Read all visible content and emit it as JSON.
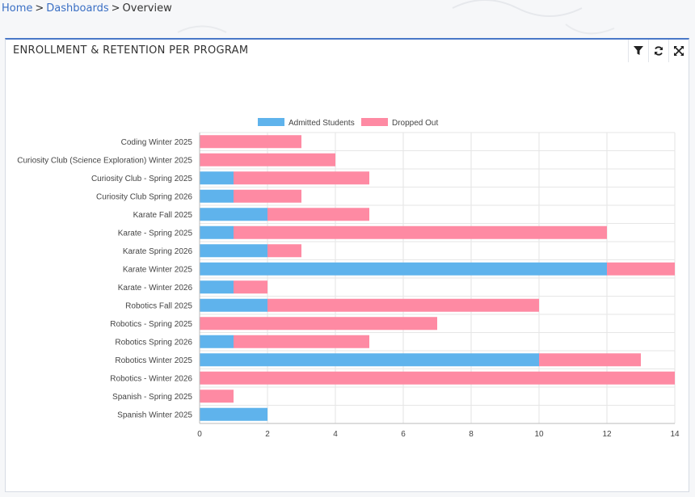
{
  "breadcrumb": {
    "home": "Home",
    "dashboards": "Dashboards",
    "current": "Overview",
    "separator": ">"
  },
  "panel": {
    "title": "ENROLLMENT & RETENTION PER PROGRAM",
    "tools": [
      {
        "name": "filter-icon"
      },
      {
        "name": "refresh-icon"
      },
      {
        "name": "expand-icon"
      }
    ]
  },
  "chart_data": {
    "type": "bar",
    "orientation": "horizontal",
    "stacked": true,
    "title": "",
    "xlabel": "",
    "ylabel": "",
    "xlim": [
      0,
      14
    ],
    "x_ticks": [
      0,
      2,
      4,
      6,
      8,
      10,
      12,
      14
    ],
    "grid": true,
    "legend_position": "top",
    "categories": [
      "Coding Winter 2025",
      "Curiosity Club (Science Exploration) Winter 2025",
      "Curiosity Club - Spring 2025",
      "Curiosity Club Spring 2026",
      "Karate Fall 2025",
      "Karate - Spring 2025",
      "Karate Spring 2026",
      "Karate Winter 2025",
      "Karate - Winter 2026",
      "Robotics Fall 2025",
      "Robotics - Spring 2025",
      "Robotics Spring 2026",
      "Robotics Winter 2025",
      "Robotics - Winter 2026",
      "Spanish - Spring 2025",
      "Spanish Winter 2025"
    ],
    "series": [
      {
        "name": "Admitted Students",
        "color": "#5fb3ec",
        "values": [
          0,
          0,
          1,
          1,
          2,
          1,
          2,
          12,
          1,
          2,
          0,
          1,
          10,
          0,
          0,
          2
        ]
      },
      {
        "name": "Dropped Out",
        "color": "#fe8aa3",
        "values": [
          3,
          4,
          4,
          2,
          3,
          11,
          1,
          2,
          1,
          8,
          7,
          4,
          3,
          14,
          1,
          0
        ]
      }
    ]
  }
}
